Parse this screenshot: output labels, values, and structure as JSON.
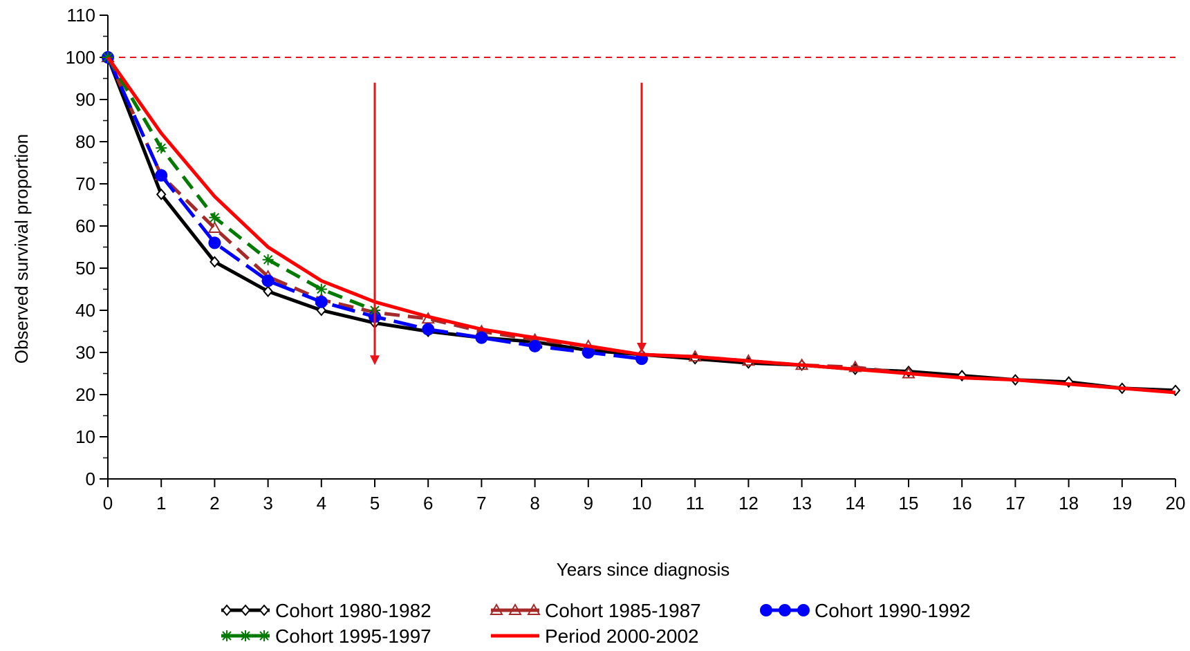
{
  "chart_data": {
    "type": "line",
    "xlabel": "Years since diagnosis",
    "ylabel": "Observed survival proportion",
    "xlim": [
      0,
      20
    ],
    "ylim": [
      0,
      110
    ],
    "x_ticks": [
      "0",
      "1",
      "2",
      "3",
      "4",
      "5",
      "6",
      "7",
      "8",
      "9",
      "10",
      "11",
      "12",
      "13",
      "14",
      "15",
      "16",
      "17",
      "18",
      "19",
      "20"
    ],
    "y_ticks": [
      "0",
      "10",
      "20",
      "30",
      "40",
      "50",
      "60",
      "70",
      "80",
      "90",
      "100",
      "110"
    ],
    "reference_line": {
      "y": 100,
      "style": "dashed",
      "color": "#e8141a"
    },
    "annotation_arrows": [
      {
        "x": 5,
        "y_from": 94,
        "y_to": 27,
        "color": "#e8141a"
      },
      {
        "x": 10,
        "y_from": 94,
        "y_to": 30,
        "color": "#e8141a"
      }
    ],
    "grid": false,
    "legend_position": "bottom",
    "series": [
      {
        "name": "Cohort 1980-1982",
        "color": "#000000",
        "marker": "diamond",
        "dash": "solid",
        "x": [
          0,
          1,
          2,
          3,
          4,
          5,
          6,
          7,
          8,
          9,
          10,
          11,
          12,
          13,
          14,
          15,
          16,
          17,
          18,
          19,
          20
        ],
        "values": [
          100,
          67.5,
          51.5,
          44.5,
          40,
          37,
          35,
          33.5,
          32.5,
          30.5,
          29.5,
          28.5,
          27.5,
          27,
          26,
          25.5,
          24.5,
          23.5,
          23,
          21.5,
          21
        ]
      },
      {
        "name": "Cohort 1985-1987",
        "color": "#a52a2a",
        "marker": "triangle",
        "dash": "dashed",
        "x": [
          0,
          1,
          2,
          3,
          4,
          5,
          6,
          7,
          8,
          9,
          10,
          11,
          12,
          13,
          14,
          15
        ],
        "values": [
          100,
          72,
          59.5,
          48,
          42.5,
          39.5,
          38,
          35,
          33,
          31.5,
          29.5,
          29,
          28,
          27,
          26.5,
          25
        ]
      },
      {
        "name": "Cohort 1990-1992",
        "color": "#0000ff",
        "marker": "circle",
        "dash": "longdash",
        "x": [
          0,
          1,
          2,
          3,
          4,
          5,
          6,
          7,
          8,
          9,
          10
        ],
        "values": [
          100,
          72,
          56,
          47,
          42,
          38.5,
          35.5,
          33.5,
          31.5,
          30,
          28.5
        ]
      },
      {
        "name": "Cohort 1995-1997",
        "color": "#007a00",
        "marker": "star",
        "dash": "dashed",
        "x": [
          0,
          1,
          2,
          3,
          4,
          5
        ],
        "values": [
          100,
          78.5,
          62,
          52,
          45,
          40
        ]
      },
      {
        "name": "Period 2000-2002",
        "color": "#ff0000",
        "marker": "none",
        "dash": "solid",
        "x": [
          0,
          1,
          2,
          3,
          4,
          5,
          6,
          7,
          8,
          9,
          10,
          11,
          12,
          13,
          14,
          15,
          16,
          17,
          18,
          19,
          20
        ],
        "values": [
          100,
          82,
          67,
          55,
          47,
          42,
          38.5,
          35.5,
          33.5,
          31.5,
          29.5,
          29,
          28,
          27,
          26,
          25,
          24,
          23.5,
          22.5,
          21.5,
          20.5
        ]
      }
    ]
  }
}
